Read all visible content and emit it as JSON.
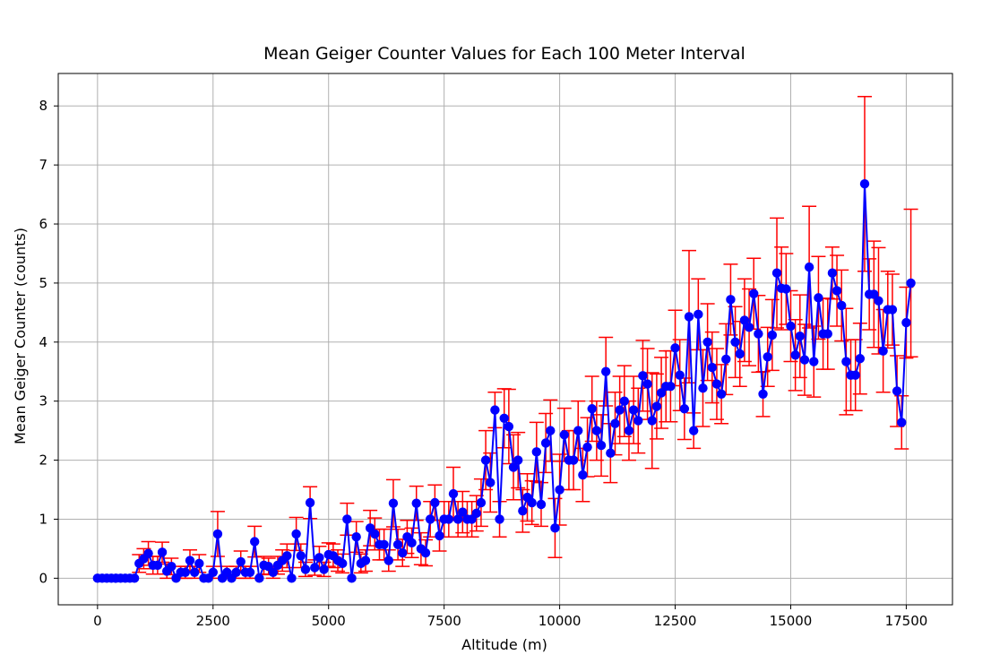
{
  "chart_data": {
    "type": "line",
    "title": "Mean Geiger Counter Values for Each 100 Meter Interval",
    "xlabel": "Altitude (m)",
    "ylabel": "Mean Geiger Counter (counts)",
    "xlim": [
      -850,
      18500
    ],
    "ylim": [
      -0.45,
      8.55
    ],
    "x_ticks": [
      0,
      2500,
      5000,
      7500,
      10000,
      12500,
      15000,
      17500
    ],
    "y_ticks": [
      0,
      1,
      2,
      3,
      4,
      5,
      6,
      7,
      8
    ],
    "grid": true,
    "line_color": "#0000ff",
    "marker_color": "#0000ff",
    "errorbar_color": "#ff0000",
    "series": [
      {
        "x": [
          0,
          100,
          200,
          300,
          400,
          500,
          600,
          700,
          800,
          900,
          1000,
          1100,
          1200,
          1300,
          1400,
          1500,
          1600,
          1700,
          1800,
          1900,
          2000,
          2100,
          2200,
          2300,
          2400,
          2500,
          2600,
          2700,
          2800,
          2900,
          3000,
          3100,
          3200,
          3300,
          3400,
          3500,
          3600,
          3700,
          3800,
          3900,
          4000,
          4100,
          4200,
          4300,
          4400,
          4500,
          4600,
          4700,
          4800,
          4900,
          5000,
          5100,
          5200,
          5300,
          5400,
          5500,
          5600,
          5700,
          5800,
          5900,
          6000,
          6100,
          6200,
          6300,
          6400,
          6500,
          6600,
          6700,
          6800,
          6900,
          7000,
          7100,
          7200,
          7300,
          7400,
          7500,
          7600,
          7700,
          7800,
          7900,
          8000,
          8100,
          8200,
          8300,
          8400,
          8500,
          8600,
          8700,
          8800,
          8900,
          9000,
          9100,
          9200,
          9300,
          9400,
          9500,
          9600,
          9700,
          9800,
          9900,
          10000,
          10100,
          10200,
          10300,
          10400,
          10500,
          10600,
          10700,
          10800,
          10900,
          11000,
          11100,
          11200,
          11300,
          11400,
          11500,
          11600,
          11700,
          11800,
          11900,
          12000,
          12100,
          12200,
          12300,
          12400,
          12500,
          12600,
          12700,
          12800,
          12900,
          13000,
          13100,
          13200,
          13300,
          13400,
          13500,
          13600,
          13700,
          13800,
          13900,
          14000,
          14100,
          14200,
          14300,
          14400,
          14500,
          14600,
          14700,
          14800,
          14900,
          15000,
          15100,
          15200,
          15300,
          15400,
          15500,
          15600,
          15700,
          15800,
          15900,
          16000,
          16100,
          16200,
          16300,
          16400,
          16500,
          16600,
          16700,
          16800,
          16900,
          17000,
          17100,
          17200,
          17300,
          17400,
          17500,
          17600
        ],
        "y": [
          0,
          0,
          0,
          0,
          0,
          0,
          0,
          0,
          0,
          0.25,
          0.33,
          0.42,
          0.22,
          0.22,
          0.44,
          0.12,
          0.2,
          0,
          0.1,
          0.1,
          0.3,
          0.1,
          0.25,
          0,
          0,
          0.1,
          0.75,
          0,
          0.1,
          0,
          0.1,
          0.28,
          0.1,
          0.1,
          0.62,
          0,
          0.22,
          0.2,
          0.1,
          0.22,
          0.3,
          0.38,
          0,
          0.75,
          0.38,
          0.15,
          1.28,
          0.18,
          0.35,
          0.15,
          0.4,
          0.38,
          0.3,
          0.25,
          1.0,
          0,
          0.7,
          0.25,
          0.3,
          0.85,
          0.75,
          0.57,
          0.57,
          0.3,
          1.27,
          0.57,
          0.43,
          0.7,
          0.6,
          1.27,
          0.5,
          0.43,
          1.0,
          1.28,
          0.72,
          1.0,
          1.0,
          1.43,
          1.0,
          1.12,
          1.0,
          1.0,
          1.1,
          1.28,
          2.0,
          1.62,
          2.85,
          1.0,
          2.71,
          2.57,
          1.88,
          2.0,
          1.14,
          1.37,
          1.28,
          2.14,
          1.25,
          2.29,
          2.5,
          0.85,
          1.5,
          2.43,
          2.0,
          2.0,
          2.5,
          1.75,
          2.22,
          2.87,
          2.5,
          2.25,
          3.5,
          2.12,
          2.62,
          2.85,
          3.0,
          2.5,
          2.85,
          2.67,
          3.43,
          3.29,
          2.67,
          2.91,
          3.14,
          3.25,
          3.25,
          3.9,
          3.44,
          2.87,
          4.43,
          2.5,
          4.47,
          3.22,
          4.0,
          3.57,
          3.29,
          3.12,
          3.71,
          4.72,
          4.0,
          3.8,
          4.37,
          4.25,
          4.82,
          4.14,
          3.12,
          3.75,
          4.12,
          5.17,
          4.91,
          4.9,
          4.27,
          3.78,
          4.1,
          3.7,
          5.27,
          3.67,
          4.75,
          4.14,
          4.14,
          5.17,
          4.87,
          4.62,
          3.67,
          3.44,
          3.44,
          3.72,
          6.68,
          4.81,
          4.81,
          4.7,
          3.85,
          4.55,
          4.55,
          3.17,
          2.64,
          4.33,
          5.0
        ],
        "yerr": [
          0,
          0,
          0,
          0,
          0,
          0,
          0,
          0,
          0,
          0.15,
          0.17,
          0.2,
          0.15,
          0.15,
          0.17,
          0.12,
          0.14,
          0,
          0.1,
          0.1,
          0.18,
          0.1,
          0.15,
          0,
          0,
          0.1,
          0.38,
          0,
          0.1,
          0,
          0.1,
          0.18,
          0.1,
          0.1,
          0.26,
          0,
          0.15,
          0.14,
          0.1,
          0.15,
          0.18,
          0.2,
          0,
          0.28,
          0.2,
          0.12,
          0.27,
          0.13,
          0.19,
          0.12,
          0.2,
          0.2,
          0.18,
          0.16,
          0.27,
          0,
          0.26,
          0.16,
          0.18,
          0.3,
          0.27,
          0.26,
          0.26,
          0.18,
          0.4,
          0.26,
          0.23,
          0.28,
          0.25,
          0.29,
          0.27,
          0.22,
          0.3,
          0.3,
          0.26,
          0.3,
          0.3,
          0.45,
          0.3,
          0.35,
          0.3,
          0.3,
          0.3,
          0.4,
          0.5,
          0.5,
          0.3,
          0.3,
          0.5,
          0.63,
          0.55,
          0.47,
          0.36,
          0.4,
          0.37,
          0.5,
          0.37,
          0.5,
          0.52,
          0.5,
          0.6,
          0.45,
          0.5,
          0.5,
          0.5,
          0.45,
          0.5,
          0.55,
          0.5,
          0.52,
          0.58,
          0.5,
          0.53,
          0.57,
          0.6,
          0.5,
          0.57,
          0.55,
          0.6,
          0.6,
          0.81,
          0.55,
          0.6,
          0.6,
          0.6,
          0.64,
          0.6,
          0.52,
          1.12,
          0.3,
          0.6,
          0.65,
          0.65,
          0.6,
          0.6,
          0.5,
          0.6,
          0.6,
          0.6,
          0.55,
          0.7,
          0.65,
          0.6,
          0.65,
          0.38,
          0.5,
          0.6,
          0.93,
          0.7,
          0.6,
          0.6,
          0.6,
          0.7,
          0.6,
          1.03,
          0.6,
          0.7,
          0.6,
          0.6,
          0.44,
          0.6,
          0.6,
          0.9,
          0.6,
          0.6,
          0.6,
          1.48,
          0.6,
          0.9,
          0.9,
          0.7,
          0.65,
          0.6,
          0.6,
          0.45,
          0.6,
          1.25
        ]
      }
    ]
  }
}
